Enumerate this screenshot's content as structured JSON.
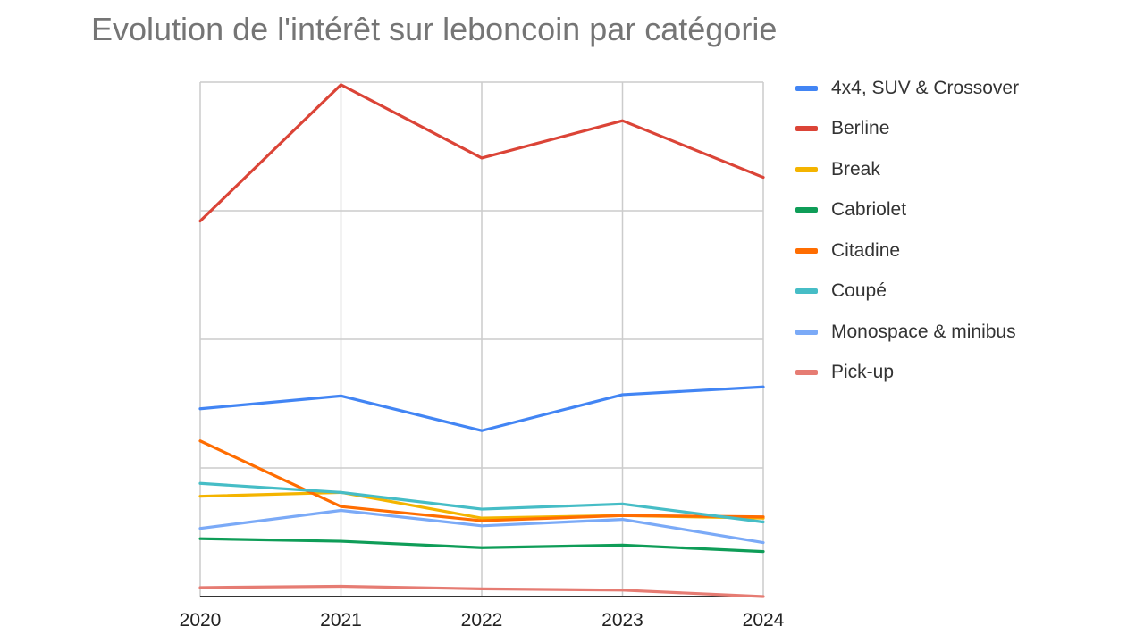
{
  "chart_data": {
    "type": "line",
    "title": "Evolution de l'intérêt sur leboncoin par catégorie",
    "xlabel": "",
    "ylabel": "",
    "x": [
      "2020",
      "2021",
      "2022",
      "2023",
      "2024"
    ],
    "ylim": [
      0,
      4
    ],
    "grid": true,
    "legend_position": "right",
    "series": [
      {
        "name": "4x4, SUV & Crossover",
        "color": "#4285f4",
        "values": [
          1.46,
          1.56,
          1.29,
          1.57,
          1.63
        ]
      },
      {
        "name": "Berline",
        "color": "#db4437",
        "values": [
          2.92,
          3.98,
          3.41,
          3.7,
          3.26
        ]
      },
      {
        "name": "Break",
        "color": "#f4b400",
        "values": [
          0.78,
          0.81,
          0.61,
          0.63,
          0.61
        ]
      },
      {
        "name": "Cabriolet",
        "color": "#0f9d58",
        "values": [
          0.45,
          0.43,
          0.38,
          0.4,
          0.35
        ]
      },
      {
        "name": "Citadine",
        "color": "#ff6d01",
        "values": [
          1.21,
          0.7,
          0.59,
          0.63,
          0.62
        ]
      },
      {
        "name": "Coupé",
        "color": "#46bdc6",
        "values": [
          0.88,
          0.81,
          0.68,
          0.72,
          0.58
        ]
      },
      {
        "name": "Monospace & minibus",
        "color": "#7baaf7",
        "values": [
          0.53,
          0.67,
          0.55,
          0.6,
          0.42
        ]
      },
      {
        "name": "Pick-up",
        "color": "#e67c73",
        "values": [
          0.07,
          0.08,
          0.06,
          0.05,
          0.0
        ]
      }
    ]
  }
}
